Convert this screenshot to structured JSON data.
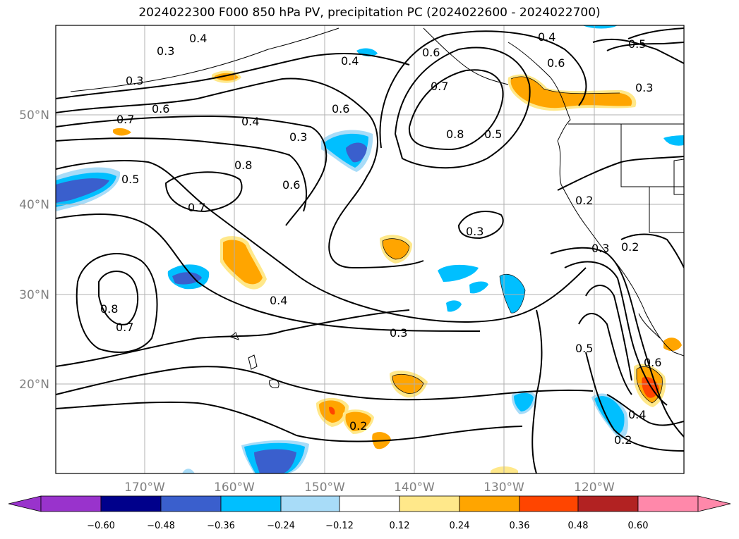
{
  "title": "2024022300 F000 850 hPa PV, precipitation PC (2024022600 - 2024022700)",
  "map": {
    "lon_labels": [
      "170°W",
      "160°W",
      "150°W",
      "140°W",
      "130°W",
      "120°W"
    ],
    "lat_labels": [
      "50°N",
      "40°N",
      "30°N",
      "20°N"
    ],
    "contour_labels": [
      "0.4",
      "0.3",
      "0.3",
      "0.4",
      "0.6",
      "0.7",
      "0.6",
      "0.4",
      "0.5",
      "0.7",
      "0.6",
      "0.4",
      "0.3",
      "0.6",
      "0.8",
      "0.5",
      "0.3",
      "0.5",
      "0.8",
      "0.6",
      "0.7",
      "0.3",
      "0.2",
      "0.3",
      "0.2",
      "0.4",
      "0.8",
      "0.7",
      "0.3",
      "0.5",
      "0.6",
      "0.4",
      "0.2",
      "0.2"
    ],
    "colors": {
      "ocean": "#ffffff",
      "grid": "#b0b0b0",
      "pos_low": "#ffe88a",
      "pos_mid": "#ffa500",
      "pos_high": "#ff4500",
      "neg_low": "#a8dcf8",
      "neg_mid": "#00bfff",
      "neg_high": "#3a5fcd"
    }
  },
  "colorbar": {
    "ticks": [
      "−0.60",
      "−0.48",
      "−0.36",
      "−0.24",
      "−0.12",
      "0.12",
      "0.24",
      "0.36",
      "0.48",
      "0.60"
    ],
    "colors": [
      "#9933cc",
      "#a050d0",
      "#00008b",
      "#3a5fcd",
      "#00bfff",
      "#a8dcf8",
      "#ffffff",
      "#ffe88a",
      "#ffa500",
      "#ff4500",
      "#b22222",
      "#ff88aa"
    ]
  }
}
